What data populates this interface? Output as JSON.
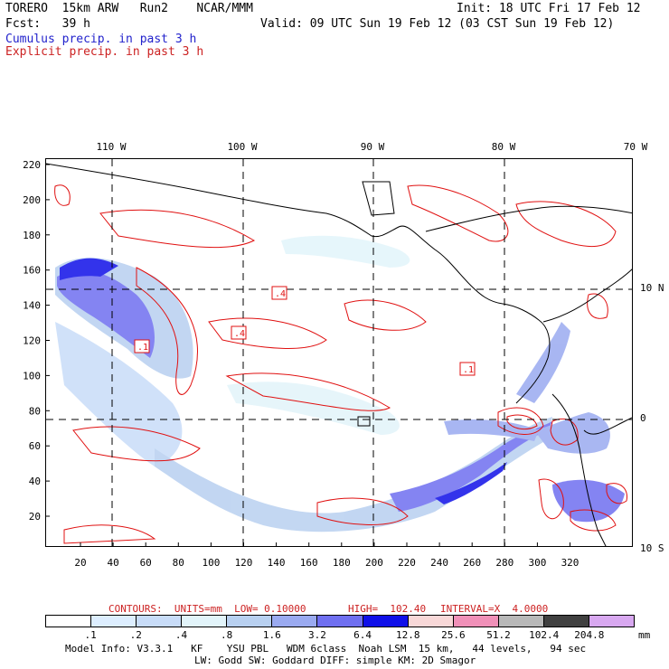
{
  "header": {
    "line1_left": "TORERO  15km ARW   Run2    NCAR/MMM",
    "line1_right": "Init: 18 UTC Fri 17 Feb 12",
    "line2_left": "Fcst:   39 h",
    "line2_right": "Valid: 09 UTC Sun 19 Feb 12 (03 CST Sun 19 Feb 12)",
    "cumulus_label": "Cumulus precip. in past 3 h",
    "explicit_label": "Explicit precip. in past 3 h"
  },
  "axes": {
    "top_lon_labels": [
      "110 W",
      "100 W",
      "90 W",
      "80 W",
      "70 W"
    ],
    "right_lat_labels": [
      "10 N",
      "0",
      "10 S"
    ],
    "left_y_ticks": [
      "220",
      "200",
      "180",
      "160",
      "140",
      "120",
      "100",
      "80",
      "60",
      "40",
      "20"
    ],
    "bottom_x_ticks": [
      "20",
      "40",
      "60",
      "80",
      "100",
      "120",
      "140",
      "160",
      "180",
      "200",
      "220",
      "240",
      "260",
      "280",
      "300",
      "320"
    ]
  },
  "map_annotations": [
    ".4",
    ".4",
    ".1",
    ".1"
  ],
  "contour_info": {
    "contours_label": "CONTOURS:  UNITS=mm  LOW= 0.10000",
    "high_label": "HIGH=  102.40",
    "interval_label": "INTERVAL=X  4.0000"
  },
  "colorbar": {
    "labels": [
      ".1",
      ".2",
      ".4",
      ".8",
      "1.6",
      "3.2",
      "6.4",
      "12.8",
      "25.6",
      "51.2",
      "102.4",
      "204.8"
    ],
    "units": "mm",
    "colors": [
      "#ffffff",
      "#ddeeff",
      "#c8dcf8",
      "#e2f4fa",
      "#b8d0f0",
      "#9aaaf0",
      "#6f6ff0",
      "#1010e8",
      "#f8d8d8",
      "#f090b8",
      "#b8b8b8",
      "#404040",
      "#d8a8f0"
    ]
  },
  "footer": {
    "line1": "Model Info: V3.3.1   KF    YSU PBL   WDM 6class  Noah LSM  15 km,   44 levels,   94 sec",
    "line2": "LW: Godd SW: Goddard DIFF: simple KM: 2D Smagor"
  }
}
